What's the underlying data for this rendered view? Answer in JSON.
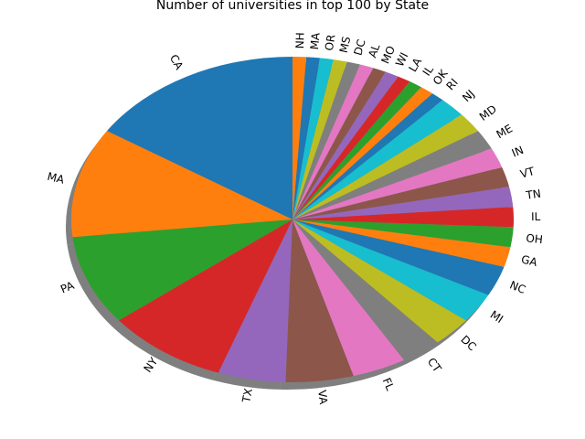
{
  "chart_data": {
    "type": "pie",
    "title": "Number of universities in top 100 by State",
    "shadow": true,
    "start_angle_deg": 90,
    "direction": "counterclockwise",
    "labels_rotated": true,
    "slices": [
      {
        "label": "CA",
        "value": 16,
        "color": "#1f77b4"
      },
      {
        "label": "MA",
        "value": 11,
        "color": "#ff7f0e"
      },
      {
        "label": "PA",
        "value": 9,
        "color": "#2ca02c"
      },
      {
        "label": "NY",
        "value": 9,
        "color": "#d62728"
      },
      {
        "label": "TX",
        "value": 5,
        "color": "#9467bd"
      },
      {
        "label": "VA",
        "value": 5,
        "color": "#8c564b"
      },
      {
        "label": "FL",
        "value": 4,
        "color": "#e377c2"
      },
      {
        "label": "CT",
        "value": 3,
        "color": "#7f7f7f"
      },
      {
        "label": "DC",
        "value": 3,
        "color": "#bcbd22"
      },
      {
        "label": "MI",
        "value": 3,
        "color": "#17becf"
      },
      {
        "label": "NC",
        "value": 3,
        "color": "#1f77b4"
      },
      {
        "label": "GA",
        "value": 2,
        "color": "#ff7f0e"
      },
      {
        "label": "OH",
        "value": 2,
        "color": "#2ca02c"
      },
      {
        "label": "IL",
        "value": 2,
        "color": "#d62728"
      },
      {
        "label": "TN",
        "value": 2,
        "color": "#9467bd"
      },
      {
        "label": "VT",
        "value": 2,
        "color": "#8c564b"
      },
      {
        "label": "IN",
        "value": 2,
        "color": "#e377c2"
      },
      {
        "label": "ME",
        "value": 2,
        "color": "#7f7f7f"
      },
      {
        "label": "MD",
        "value": 2,
        "color": "#bcbd22"
      },
      {
        "label": "NJ",
        "value": 2,
        "color": "#17becf"
      },
      {
        "label": "RI",
        "value": 1,
        "color": "#1f77b4"
      },
      {
        "label": "OK",
        "value": 1,
        "color": "#ff7f0e"
      },
      {
        "label": "IL",
        "value": 1,
        "color": "#2ca02c"
      },
      {
        "label": "LA",
        "value": 1,
        "color": "#d62728"
      },
      {
        "label": "WI",
        "value": 1,
        "color": "#9467bd"
      },
      {
        "label": "MO",
        "value": 1,
        "color": "#8c564b"
      },
      {
        "label": "AL",
        "value": 1,
        "color": "#e377c2"
      },
      {
        "label": "DC",
        "value": 1,
        "color": "#7f7f7f"
      },
      {
        "label": "MS",
        "value": 1,
        "color": "#bcbd22"
      },
      {
        "label": "OR",
        "value": 1,
        "color": "#17becf"
      },
      {
        "label": "MA",
        "value": 1,
        "color": "#1f77b4"
      },
      {
        "label": "NH",
        "value": 1,
        "color": "#ff7f0e"
      }
    ]
  }
}
